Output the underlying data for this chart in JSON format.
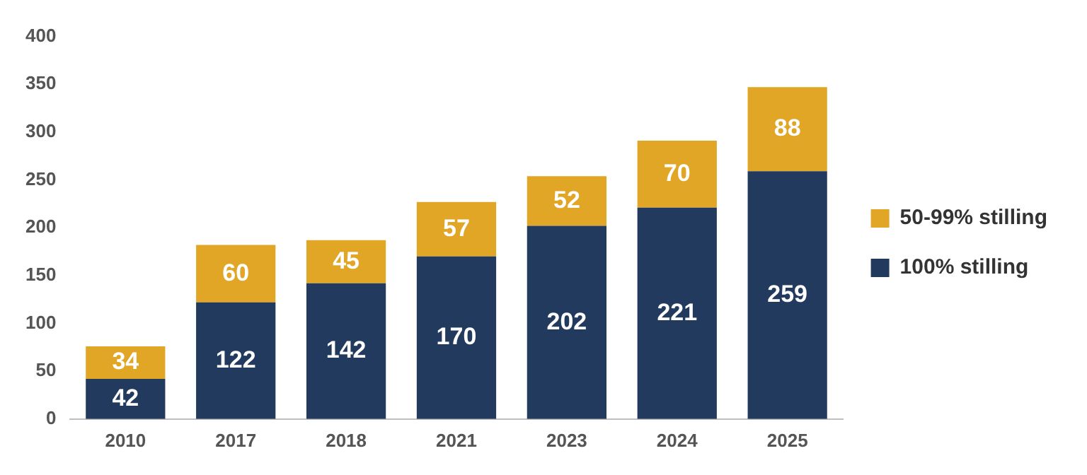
{
  "chart_data": {
    "type": "bar",
    "stacked": true,
    "categories": [
      "2010",
      "2017",
      "2018",
      "2021",
      "2023",
      "2024",
      "2025"
    ],
    "series": [
      {
        "name": "100% stilling",
        "color": "#223a5e",
        "values": [
          42,
          122,
          142,
          170,
          202,
          221,
          259
        ]
      },
      {
        "name": "50-99% stilling",
        "color": "#e2a626",
        "values": [
          34,
          60,
          45,
          57,
          52,
          70,
          88
        ]
      }
    ],
    "ylim": [
      0,
      400
    ],
    "yticks": [
      0,
      50,
      100,
      150,
      200,
      250,
      300,
      350,
      400
    ],
    "grid": false,
    "legend": "right",
    "data_labels": true
  }
}
